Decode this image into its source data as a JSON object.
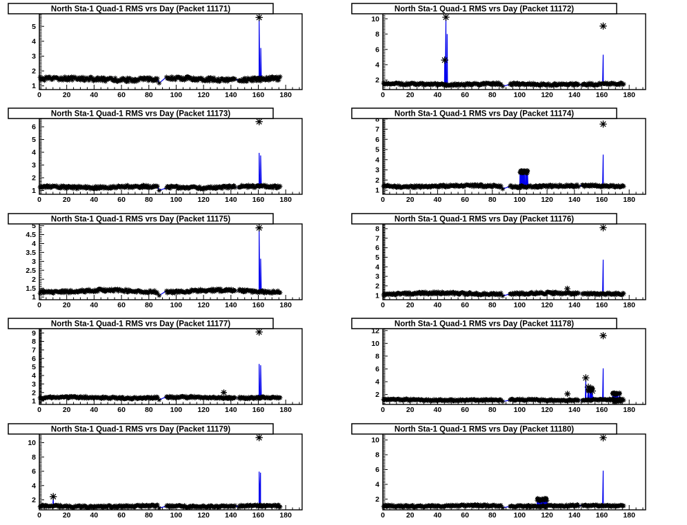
{
  "page": {
    "background": "#ffffff"
  },
  "colors": {
    "line": "#0000ee",
    "marker": "#000000",
    "frame": "#000000",
    "text": "#000000",
    "title_box_fill": "#ffffff"
  },
  "chart_data": [
    {
      "type": "scatter",
      "title": "North Sta-1 Quad-1 RMS vrs Day (Packet 11171)",
      "packet": "11171",
      "xlabel": "",
      "ylabel": "",
      "grid": false,
      "legend": "none",
      "xlim": [
        0,
        192
      ],
      "xticks": [
        0,
        20,
        40,
        60,
        80,
        100,
        120,
        140,
        160,
        180
      ],
      "xtick_minor": 5,
      "ylim": [
        0.75,
        5.85
      ],
      "yticks": [
        1,
        2,
        3,
        4,
        5
      ],
      "ytick_minor": 0.1,
      "baseline": {
        "mean": 1.45,
        "spread": 0.13,
        "x_start": 0.5,
        "x_end": 176.5,
        "gaps": [
          [
            86.5,
            92.5
          ],
          [
            143.4,
            145.2
          ]
        ],
        "gap_dip": {
          "x": 87.6,
          "y": 1.18
        }
      },
      "spikes": [
        {
          "x": 160.6,
          "marker": 5.6,
          "line": 5.45
        },
        {
          "x": 161.8,
          "marker": null,
          "line": 3.55
        }
      ],
      "clusters": [],
      "extras": []
    },
    {
      "type": "scatter",
      "title": "North Sta-1 Quad-1 RMS vrs Day (Packet 11172)",
      "packet": "11172",
      "xlabel": "",
      "ylabel": "",
      "grid": false,
      "legend": "none",
      "xlim": [
        0,
        192
      ],
      "xticks": [
        0,
        20,
        40,
        60,
        80,
        100,
        120,
        140,
        160,
        180
      ],
      "xtick_minor": 5,
      "ylim": [
        0.75,
        10.65
      ],
      "yticks": [
        2,
        4,
        6,
        8,
        10
      ],
      "ytick_minor": 0.2,
      "baseline": {
        "mean": 1.45,
        "spread": 0.15,
        "x_start": 0.5,
        "x_end": 176.5,
        "gaps": [
          [
            86.5,
            92.5
          ],
          [
            143.4,
            145.2
          ]
        ],
        "gap_dip": {
          "x": 87.6,
          "y": 1.18
        }
      },
      "spikes": [
        {
          "x": 45.2,
          "marker": 4.6,
          "line": 4.45
        },
        {
          "x": 46.1,
          "marker": 10.2,
          "line": 10.0
        },
        {
          "x": 47.0,
          "marker": null,
          "line": 8.0
        },
        {
          "x": 161.0,
          "marker": 9.05,
          "line": 5.3
        }
      ],
      "clusters": [],
      "extras": []
    },
    {
      "type": "scatter",
      "title": "North Sta-1 Quad-1 RMS vrs Day (Packet 11173)",
      "packet": "11173",
      "xlabel": "",
      "ylabel": "",
      "grid": false,
      "legend": "none",
      "xlim": [
        0,
        192
      ],
      "xticks": [
        0,
        20,
        40,
        60,
        80,
        100,
        120,
        140,
        160,
        180
      ],
      "xtick_minor": 5,
      "ylim": [
        0.7,
        6.65
      ],
      "yticks": [
        1,
        2,
        3,
        4,
        5,
        6
      ],
      "ytick_minor": 0.1,
      "baseline": {
        "mean": 1.27,
        "spread": 0.11,
        "x_start": 0.5,
        "x_end": 176.5,
        "gaps": [
          [
            86.5,
            92.5
          ],
          [
            143.4,
            145.2
          ]
        ],
        "gap_dip": {
          "x": 87.6,
          "y": 1.0
        }
      },
      "spikes": [
        {
          "x": 160.6,
          "marker": 6.4,
          "line": 3.95
        },
        {
          "x": 161.7,
          "marker": null,
          "line": 3.75
        }
      ],
      "clusters": [],
      "extras": []
    },
    {
      "type": "scatter",
      "title": "North Sta-1 Quad-1 RMS vrs Day (Packet 11174)",
      "packet": "11174",
      "xlabel": "",
      "ylabel": "",
      "grid": false,
      "legend": "none",
      "xlim": [
        0,
        192
      ],
      "xticks": [
        0,
        20,
        40,
        60,
        80,
        100,
        120,
        140,
        160,
        180
      ],
      "xtick_minor": 5,
      "ylim": [
        0.6,
        8.05
      ],
      "yticks": [
        1,
        2,
        3,
        4,
        5,
        6,
        7,
        8
      ],
      "ytick_minor": 0.1,
      "baseline": {
        "mean": 1.4,
        "spread": 0.12,
        "x_start": 0.5,
        "x_end": 176.5,
        "gaps": [
          [
            86.5,
            92.5
          ],
          [
            143.4,
            145.2
          ]
        ],
        "gap_dip": {
          "x": 87.6,
          "y": 1.13
        }
      },
      "spikes": [
        {
          "x": 100.7,
          "marker": null,
          "line": 2.6
        },
        {
          "x": 105.4,
          "marker": null,
          "line": 2.7
        },
        {
          "x": 161.0,
          "marker": 7.5,
          "line": 4.5
        }
      ],
      "clusters": [
        {
          "x0": 100.2,
          "x1": 105.8,
          "y": 2.82,
          "spread": 0.15,
          "n": 30
        }
      ],
      "extras": []
    },
    {
      "type": "scatter",
      "title": "North Sta-1 Quad-1 RMS vrs Day (Packet 11175)",
      "packet": "11175",
      "xlabel": "",
      "ylabel": "",
      "grid": false,
      "legend": "none",
      "xlim": [
        0,
        192
      ],
      "xticks": [
        0,
        20,
        40,
        60,
        80,
        100,
        120,
        140,
        160,
        180
      ],
      "xtick_minor": 5,
      "ylim": [
        0.85,
        5.1
      ],
      "yticks": [
        1,
        1.5,
        2,
        2.5,
        3,
        3.5,
        4,
        4.5,
        5
      ],
      "ytick_minor": 0.1,
      "baseline": {
        "mean": 1.33,
        "spread": 0.08,
        "x_start": 0.5,
        "x_end": 176.5,
        "gaps": [
          [
            86.5,
            92.5
          ],
          [
            143.4,
            145.2
          ]
        ],
        "gap_dip": {
          "x": 87.6,
          "y": 1.08
        }
      },
      "spikes": [
        {
          "x": 160.6,
          "marker": 4.88,
          "line": 4.75
        },
        {
          "x": 161.7,
          "marker": null,
          "line": 3.15
        }
      ],
      "clusters": [],
      "extras": []
    },
    {
      "type": "scatter",
      "title": "North Sta-1 Quad-1 RMS vrs Day (Packet 11176)",
      "packet": "11176",
      "xlabel": "",
      "ylabel": "",
      "grid": false,
      "legend": "none",
      "xlim": [
        0,
        192
      ],
      "xticks": [
        0,
        20,
        40,
        60,
        80,
        100,
        120,
        140,
        160,
        180
      ],
      "xtick_minor": 5,
      "ylim": [
        0.55,
        8.5
      ],
      "yticks": [
        1,
        2,
        3,
        4,
        5,
        6,
        7,
        8
      ],
      "ytick_minor": 0.1,
      "baseline": {
        "mean": 1.2,
        "spread": 0.12,
        "x_start": 0.5,
        "x_end": 176.5,
        "gaps": [
          [
            86.5,
            92.5
          ],
          [
            143.4,
            145.2
          ]
        ],
        "gap_dip": {
          "x": 87.6,
          "y": 0.95
        }
      },
      "spikes": [
        {
          "x": 161.0,
          "marker": 8.1,
          "line": 4.75
        }
      ],
      "clusters": [],
      "extras": [
        {
          "x": 134.8,
          "y": 1.7
        }
      ]
    },
    {
      "type": "scatter",
      "title": "North Sta-1 Quad-1 RMS vrs Day (Packet 11177)",
      "packet": "11177",
      "xlabel": "",
      "ylabel": "",
      "grid": false,
      "legend": "none",
      "xlim": [
        0,
        192
      ],
      "xticks": [
        0,
        20,
        40,
        60,
        80,
        100,
        120,
        140,
        160,
        180
      ],
      "xtick_minor": 5,
      "ylim": [
        0.6,
        9.5
      ],
      "yticks": [
        1,
        2,
        3,
        4,
        5,
        6,
        7,
        8,
        9
      ],
      "ytick_minor": 0.1,
      "baseline": {
        "mean": 1.4,
        "spread": 0.12,
        "x_start": 0.5,
        "x_end": 176.5,
        "gaps": [
          [
            86.5,
            92.5
          ],
          [
            143.4,
            145.2
          ]
        ],
        "gap_dip": {
          "x": 87.6,
          "y": 1.13
        }
      },
      "spikes": [
        {
          "x": 160.6,
          "marker": 9.1,
          "line": 5.35
        },
        {
          "x": 161.7,
          "marker": null,
          "line": 5.2
        }
      ],
      "clusters": [],
      "extras": [
        {
          "x": 134.8,
          "y": 2.0
        }
      ]
    },
    {
      "type": "scatter",
      "title": "North Sta-1 Quad-1 RMS vrs Day (Packet 11178)",
      "packet": "11178",
      "xlabel": "",
      "ylabel": "",
      "grid": false,
      "legend": "none",
      "xlim": [
        0,
        192
      ],
      "xticks": [
        0,
        20,
        40,
        60,
        80,
        100,
        120,
        140,
        160,
        180
      ],
      "xtick_minor": 5,
      "ylim": [
        0.45,
        12.3
      ],
      "yticks": [
        2,
        4,
        6,
        8,
        10,
        12
      ],
      "ytick_minor": 0.2,
      "baseline": {
        "mean": 1.15,
        "spread": 0.13,
        "x_start": 0.5,
        "x_end": 176.5,
        "gaps": [
          [
            86.5,
            92.5
          ],
          [
            143.4,
            145.2
          ]
        ],
        "gap_dip": {
          "x": 87.6,
          "y": 0.9
        }
      },
      "spikes": [
        {
          "x": 148.3,
          "marker": 4.6,
          "line": 4.4
        },
        {
          "x": 150.1,
          "marker": 3.15,
          "line": 3.0
        },
        {
          "x": 151.3,
          "marker": 2.8,
          "line": 2.85
        },
        {
          "x": 153.1,
          "marker": 2.55,
          "line": 2.45
        },
        {
          "x": 161.0,
          "marker": 11.2,
          "line": 6.1
        }
      ],
      "clusters": [
        {
          "x0": 149.2,
          "x1": 153.2,
          "y": 2.8,
          "spread": 0.3,
          "n": 10
        },
        {
          "x0": 167.8,
          "x1": 173.2,
          "y": 2.15,
          "spread": 0.17,
          "n": 18
        },
        {
          "x0": 168.0,
          "x1": 174.5,
          "y": 0.88,
          "spread": 0.08,
          "n": 14
        }
      ],
      "extras": [
        {
          "x": 134.9,
          "y": 2.1
        }
      ]
    },
    {
      "type": "scatter",
      "title": "North Sta-1 Quad-1 RMS vrs Day (Packet 11179)",
      "packet": "11179",
      "xlabel": "",
      "ylabel": "",
      "grid": false,
      "legend": "none",
      "xlim": [
        0,
        192
      ],
      "xticks": [
        0,
        20,
        40,
        60,
        80,
        100,
        120,
        140,
        160,
        180
      ],
      "xtick_minor": 5,
      "ylim": [
        0.6,
        11.2
      ],
      "yticks": [
        2,
        4,
        6,
        8,
        10
      ],
      "ytick_minor": 0.2,
      "baseline": {
        "mean": 1.1,
        "spread": 0.15,
        "x_start": 0.5,
        "x_end": 176.5,
        "gaps": [
          [
            86.5,
            92.5
          ],
          [
            143.4,
            145.2
          ]
        ],
        "gap_dip": {
          "x": 87.6,
          "y": 0.85
        }
      },
      "spikes": [
        {
          "x": 10.2,
          "marker": 2.45,
          "line": 2.3
        },
        {
          "x": 160.6,
          "marker": 10.7,
          "line": 5.95
        },
        {
          "x": 161.6,
          "marker": null,
          "line": 5.8
        }
      ],
      "clusters": [],
      "extras": []
    },
    {
      "type": "scatter",
      "title": "North Sta-1 Quad-1 RMS vrs Day (Packet 11180)",
      "packet": "11180",
      "xlabel": "",
      "ylabel": "",
      "grid": false,
      "legend": "none",
      "xlim": [
        0,
        192
      ],
      "xticks": [
        0,
        20,
        40,
        60,
        80,
        100,
        120,
        140,
        160,
        180
      ],
      "xtick_minor": 5,
      "ylim": [
        0.55,
        10.8
      ],
      "yticks": [
        2,
        4,
        6,
        8,
        10
      ],
      "ytick_minor": 0.2,
      "baseline": {
        "mean": 1.08,
        "spread": 0.13,
        "x_start": 0.5,
        "x_end": 176.5,
        "gaps": [
          [
            86.5,
            92.5
          ],
          [
            143.4,
            145.2
          ]
        ],
        "gap_dip": {
          "x": 87.6,
          "y": 0.83
        }
      },
      "spikes": [
        {
          "x": 161.0,
          "marker": 10.3,
          "line": 5.85
        }
      ],
      "clusters": [
        {
          "x0": 112.6,
          "x1": 120.2,
          "y": 1.95,
          "spread": 0.18,
          "n": 32
        }
      ],
      "extras": []
    }
  ]
}
